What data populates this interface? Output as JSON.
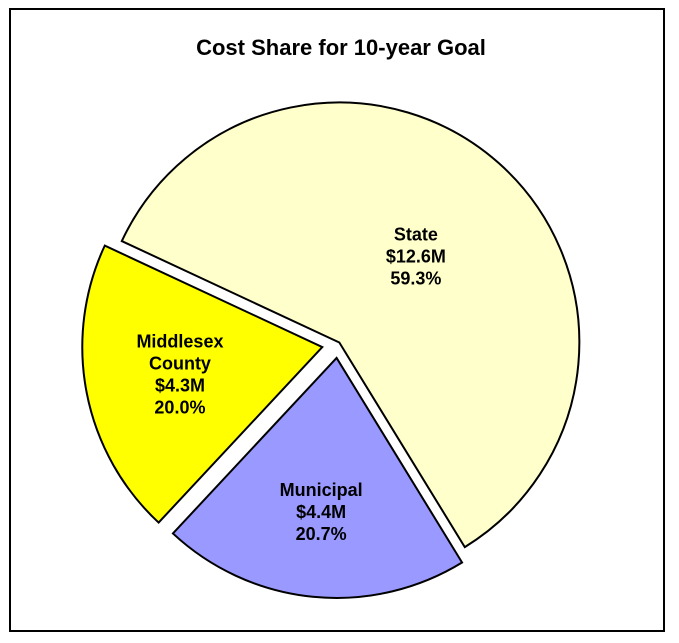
{
  "chart_data": {
    "type": "pie",
    "title": "Cost Share for 10-year Goal",
    "slices": [
      {
        "name": "State",
        "label_lines": [
          "State",
          "$12.6M",
          "59.3%"
        ],
        "value_millions": 12.6,
        "percent": 59.3,
        "color": "#FFFFCC"
      },
      {
        "name": "Municipal",
        "label_lines": [
          "Municipal",
          "$4.4M",
          "20.7%"
        ],
        "value_millions": 4.4,
        "percent": 20.7,
        "color": "#9999FF"
      },
      {
        "name": "Middlesex County",
        "label_lines": [
          "Middlesex",
          "County",
          "$4.3M",
          "20.0%"
        ],
        "value_millions": 4.3,
        "percent": 20.0,
        "color": "#FFFF00"
      }
    ],
    "exploded": true,
    "legend": "none"
  }
}
